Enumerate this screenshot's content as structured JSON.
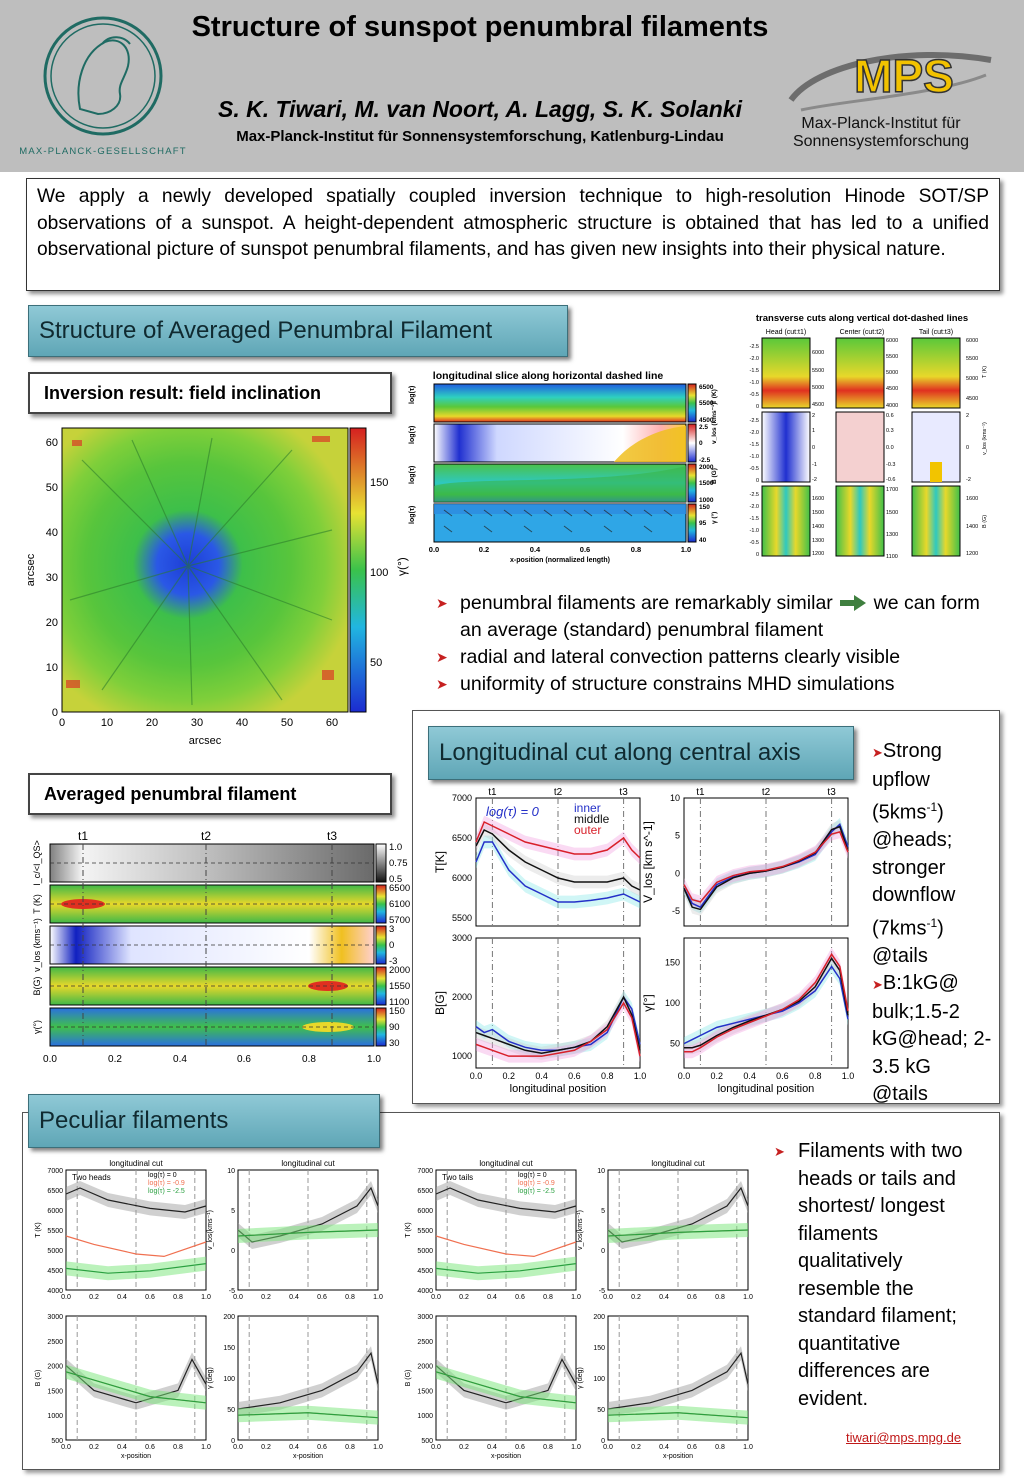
{
  "header": {
    "title": "Structure of sunspot penumbral filaments",
    "authors": "S. K. Tiwari, M. van Noort, A. Lagg, S. K. Solanki",
    "affiliation": "Max-Planck-Institut für Sonnensystemforschung, Katlenburg-Lindau",
    "mpg_label": "MAX-PLANCK-GESELLSCHAFT",
    "mps_logo": "MPS",
    "mps_institute": "Max-Planck-Institut für Sonnensystemforschung"
  },
  "abstract": "We apply a newly developed spatially coupled inversion technique to high-resolution Hinode SOT/SP observations of a sunspot. A height-dependent atmospheric structure is obtained that has led to a unified observational picture of sunspot penumbral filaments, and has given new insights into their physical nature.",
  "section1": {
    "heading": "Structure of Averaged Penumbral Filament",
    "sub_inclination": "Inversion result: field inclination",
    "sub_averaged": "Averaged penumbral filament",
    "map": {
      "xlabel": "arcsec",
      "ylabel": "arcsec",
      "xticks": [
        "0",
        "10",
        "20",
        "30",
        "40",
        "50",
        "60"
      ],
      "yticks": [
        "0",
        "10",
        "20",
        "30",
        "40",
        "50",
        "60"
      ],
      "cbar_ticks": [
        "150",
        "100",
        "50"
      ],
      "cbar_label": "γ(°)"
    },
    "long_slice": {
      "title": "longitudinal slice along horizontal dashed line",
      "xlabel": "x-position (normalized length)",
      "xticks": [
        "0.0",
        "0.2",
        "0.4",
        "0.6",
        "0.8",
        "1.0"
      ],
      "ylabel": "log(τ)",
      "panels": [
        {
          "cbar": [
            "6500",
            "5500",
            "4500"
          ],
          "unit": "T (K)"
        },
        {
          "cbar": [
            "2.5",
            "0",
            "-2.5"
          ],
          "unit": "v_los (kms⁻¹)"
        },
        {
          "cbar": [
            "2000",
            "1500",
            "1000"
          ],
          "unit": "B (G)"
        },
        {
          "cbar": [
            "150",
            "95",
            "40"
          ],
          "unit": "γ (°)"
        }
      ]
    },
    "transverse": {
      "title": "transverse cuts along vertical dot-dashed lines",
      "columns": [
        "Head (cut:t1)",
        "Center (cut:t2)",
        "Tail (cut:t3)"
      ],
      "rows": [
        {
          "cbar_a": [
            "6000",
            "5500",
            "5000",
            "4500"
          ],
          "cbar_b": [
            "6000",
            "5500",
            "5000",
            "4500",
            "4000"
          ],
          "unit": "T (K)"
        },
        {
          "cbar_a": [
            "2",
            "1",
            "0",
            "-1",
            "-2"
          ],
          "cbar_b": [
            "0.6",
            "0.3",
            "0.0",
            "-0.3",
            "-0.6"
          ],
          "unit": "v_los (kms⁻¹)"
        },
        {
          "cbar_a": [
            "1600",
            "1500",
            "1400",
            "1300",
            "1200"
          ],
          "cbar_b": [
            "1700",
            "1500",
            "1300",
            "1100"
          ],
          "unit": "B (G)"
        }
      ],
      "yticks": [
        "-2.5",
        "-2.0",
        "-1.5",
        "-1.0",
        "-0.5",
        "0"
      ]
    },
    "averaged": {
      "cuts": [
        "t1",
        "t2",
        "t3"
      ],
      "xticks": [
        "0.0",
        "0.2",
        "0.4",
        "0.6",
        "0.8",
        "1.0"
      ],
      "rows": [
        {
          "label": "I_c/<I_QS>",
          "ticks": [
            "1.0",
            "0.75",
            "0.5"
          ]
        },
        {
          "label": "T (K)",
          "ticks": [
            "6500",
            "6100",
            "5700"
          ]
        },
        {
          "label": "v_los (kms⁻¹)",
          "ticks": [
            "3",
            "0",
            "-3"
          ]
        },
        {
          "label": "B(G)",
          "ticks": [
            "2000",
            "1550",
            "1100"
          ]
        },
        {
          "label": "γ(°)",
          "ticks": [
            "150",
            "90",
            "30"
          ]
        }
      ]
    },
    "bullets": [
      "penumbral filaments are remarkably similar",
      "we can form an average (standard) penumbral filament",
      "radial and lateral convection patterns clearly visible",
      "uniformity of structure constrains MHD simulations"
    ]
  },
  "section2": {
    "heading": "Longitudinal cut along central axis",
    "legend_title": "log(τ) = 0",
    "legend": [
      "inner",
      "middle",
      "outer"
    ],
    "xlabel": "longitudinal position",
    "side_text": [
      "Strong upflow (5kms",
      "-1",
      ") @heads; stronger downflow (7kms",
      "-1",
      ") @tails",
      "B:1kG@ bulk;1.5-2 kG@head; 2-3.5 kG @tails"
    ]
  },
  "section3": {
    "heading": "Peculiar filaments",
    "panel_title": "longitudinal cut",
    "xlabel": "x-position",
    "case_a": "Two heads",
    "case_b": "Two tails",
    "legend": [
      "log(τ) = 0",
      "log(τ) = -0.9",
      "log(τ) = -2.5"
    ],
    "text": "Filaments with two heads or tails and shortest/ longest filaments qualitatively resemble the standard filament; quantitative differences are evident.",
    "email": "tiwari@mps.mpg.de"
  },
  "chart_data": [
    {
      "type": "line",
      "title": "T[K]",
      "x": [
        0.0,
        0.05,
        0.1,
        0.2,
        0.3,
        0.4,
        0.5,
        0.6,
        0.7,
        0.8,
        0.9,
        0.95,
        1.0
      ],
      "series": [
        {
          "name": "inner",
          "values": [
            6200,
            6450,
            6450,
            6100,
            5900,
            5800,
            5700,
            5700,
            5720,
            5750,
            5800,
            5750,
            5700
          ]
        },
        {
          "name": "middle",
          "values": [
            6400,
            6600,
            6550,
            6350,
            6200,
            6100,
            6000,
            5950,
            5950,
            5950,
            6000,
            5900,
            5850
          ]
        },
        {
          "name": "outer",
          "values": [
            6450,
            6700,
            6650,
            6550,
            6450,
            6400,
            6350,
            6300,
            6300,
            6350,
            6500,
            6350,
            6250
          ]
        }
      ],
      "xlim": [
        0,
        1
      ],
      "ylim": [
        5400,
        7000
      ]
    },
    {
      "type": "line",
      "title": "V_los [km s^-1]",
      "x": [
        0.0,
        0.05,
        0.1,
        0.2,
        0.3,
        0.4,
        0.5,
        0.6,
        0.7,
        0.8,
        0.9,
        0.95,
        1.0
      ],
      "series": [
        {
          "name": "inner",
          "values": [
            -2,
            -4,
            -4.5,
            -1.5,
            -0.5,
            0,
            0.3,
            0.8,
            1.5,
            2.5,
            5.5,
            6.5,
            3.5
          ]
        },
        {
          "name": "middle",
          "values": [
            -2,
            -4.5,
            -4.8,
            -1.8,
            -0.6,
            0,
            0.3,
            0.8,
            1.6,
            2.7,
            5.8,
            6.2,
            3
          ]
        },
        {
          "name": "outer",
          "values": [
            -1.5,
            -3.5,
            -3.8,
            -1.2,
            -0.3,
            0.2,
            0.4,
            0.9,
            1.7,
            2.8,
            5.2,
            5.5,
            2.8
          ]
        }
      ],
      "xlim": [
        0,
        1
      ],
      "ylim": [
        -7,
        10
      ]
    },
    {
      "type": "line",
      "title": "B[G]",
      "x": [
        0.0,
        0.05,
        0.1,
        0.2,
        0.3,
        0.4,
        0.5,
        0.6,
        0.7,
        0.8,
        0.9,
        0.95,
        1.0
      ],
      "series": [
        {
          "name": "inner",
          "values": [
            1500,
            1400,
            1450,
            1250,
            1150,
            1100,
            1100,
            1150,
            1200,
            1400,
            2000,
            1800,
            1200
          ]
        },
        {
          "name": "middle",
          "values": [
            1400,
            1350,
            1300,
            1200,
            1100,
            1050,
            1100,
            1150,
            1250,
            1500,
            2000,
            1700,
            1100
          ]
        },
        {
          "name": "outer",
          "values": [
            1200,
            1150,
            1100,
            1000,
            1000,
            1000,
            1050,
            1100,
            1250,
            1450,
            1900,
            1650,
            1000
          ]
        }
      ],
      "xlim": [
        0,
        1
      ],
      "ylim": [
        800,
        3000
      ]
    },
    {
      "type": "line",
      "title": "γ[°]",
      "x": [
        0.0,
        0.05,
        0.1,
        0.2,
        0.3,
        0.4,
        0.5,
        0.6,
        0.7,
        0.8,
        0.9,
        0.95,
        1.0
      ],
      "series": [
        {
          "name": "inner",
          "values": [
            50,
            55,
            60,
            70,
            75,
            80,
            85,
            90,
            100,
            115,
            145,
            130,
            80
          ]
        },
        {
          "name": "middle",
          "values": [
            45,
            45,
            48,
            60,
            70,
            78,
            85,
            92,
            102,
            120,
            155,
            140,
            85
          ]
        },
        {
          "name": "outer",
          "values": [
            40,
            40,
            45,
            58,
            68,
            76,
            84,
            92,
            104,
            125,
            160,
            145,
            90
          ]
        }
      ],
      "xlim": [
        0,
        1
      ],
      "ylim": [
        20,
        180
      ]
    }
  ]
}
